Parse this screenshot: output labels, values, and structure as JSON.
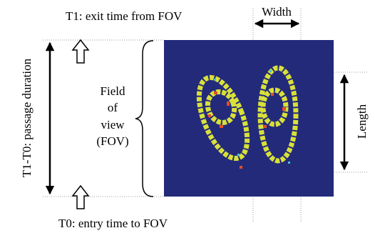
{
  "top_label": "T1: exit time from FOV",
  "width_label": "Width",
  "side_label": "T1-T0: passage duration",
  "fov_label": [
    "Field",
    "of",
    "view",
    "(FOV)"
  ],
  "length_label": "Length",
  "bottom_label": "T0: entry time to FOV"
}
